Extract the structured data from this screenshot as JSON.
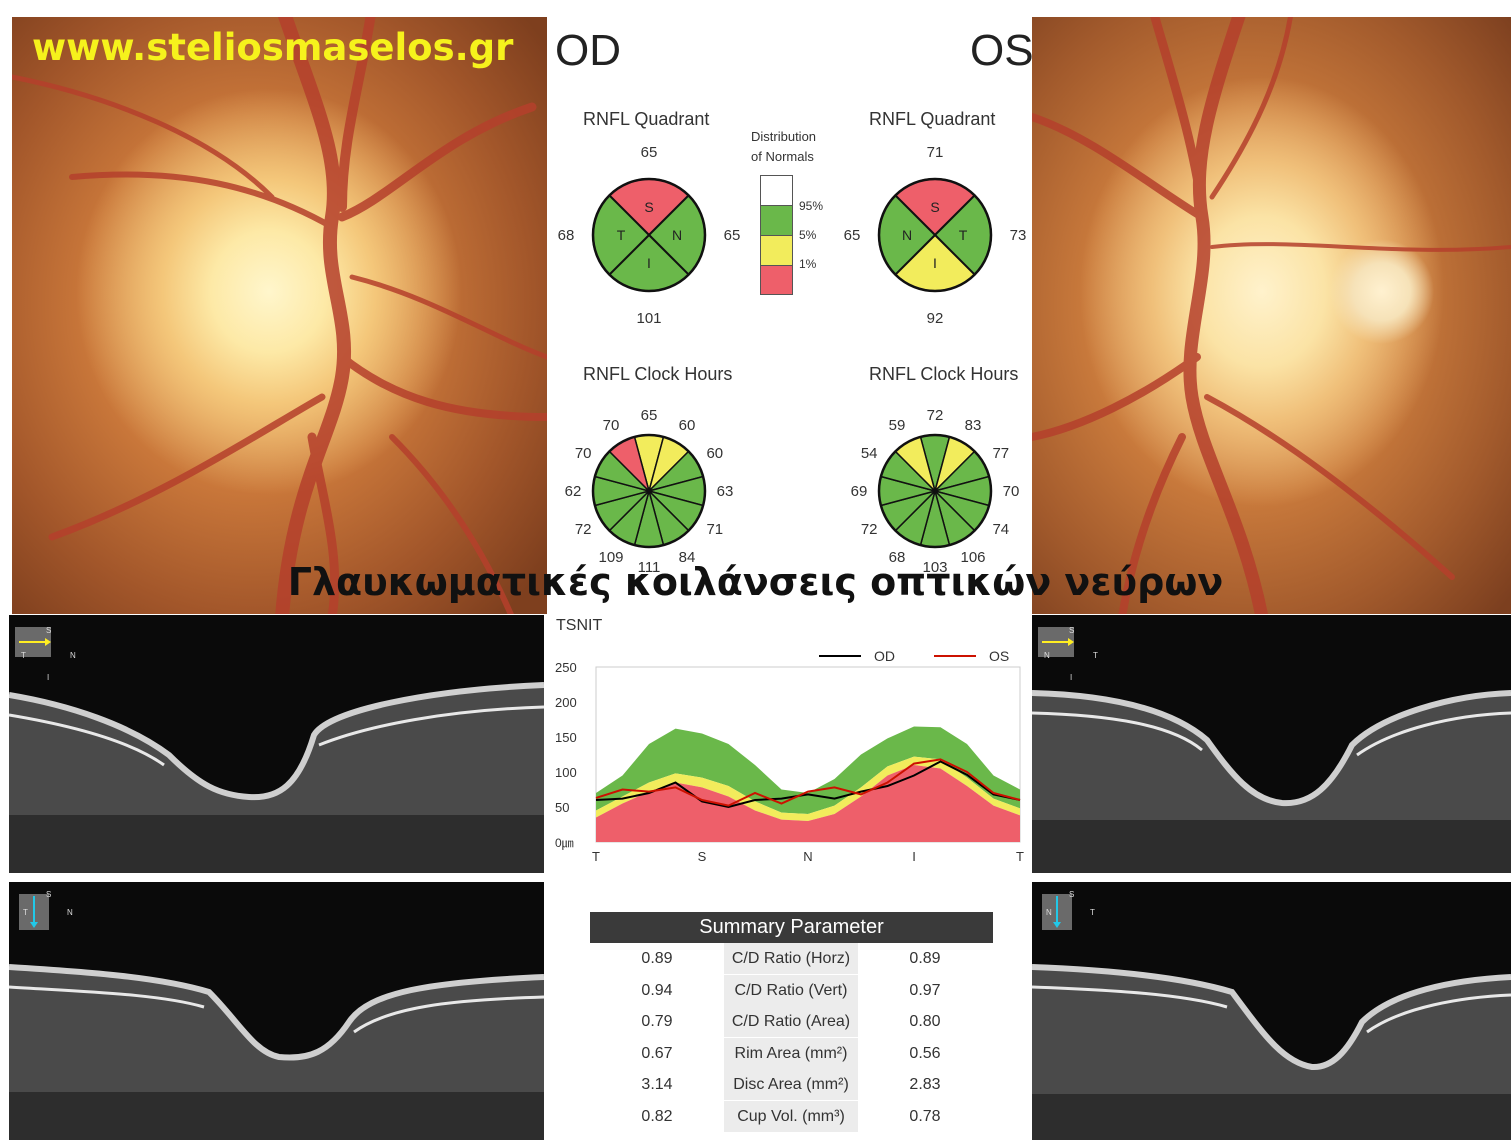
{
  "watermark": "www.steliosmaselos.gr",
  "caption": "Γλαυκωματικές κοιλάνσεις οπτικών νεύρων",
  "od_label": "OD",
  "os_label": "OS",
  "quadrant_title": "RNFL Quadrant",
  "clock_title": "RNFL Clock Hours",
  "distribution": {
    "title_line1": "Distribution",
    "title_line2": "of Normals",
    "levels": [
      "95%",
      "5%",
      "1%"
    ]
  },
  "colors": {
    "normal_green": "#6ab84a",
    "borderline_yellow": "#f2ec5c",
    "abnormal_red": "#ee5f6a",
    "white": "#ffffff",
    "od_line": "#000000",
    "os_line": "#cc1100"
  },
  "od_quadrant": {
    "S": {
      "label": "S",
      "value": "65",
      "status": "red"
    },
    "T": {
      "label": "T",
      "value": "68",
      "status": "green"
    },
    "N": {
      "label": "N",
      "value": "65",
      "status": "green"
    },
    "I": {
      "label": "I",
      "value": "101",
      "status": "green"
    }
  },
  "os_quadrant": {
    "S": {
      "label": "S",
      "value": "71",
      "status": "red"
    },
    "N": {
      "label": "N",
      "value": "65",
      "status": "green"
    },
    "T": {
      "label": "T",
      "value": "73",
      "status": "green"
    },
    "I": {
      "label": "I",
      "value": "92",
      "status": "yellow"
    }
  },
  "od_clock": [
    {
      "value": "65",
      "status": "yellow"
    },
    {
      "value": "60",
      "status": "yellow"
    },
    {
      "value": "60",
      "status": "green"
    },
    {
      "value": "63",
      "status": "green"
    },
    {
      "value": "71",
      "status": "green"
    },
    {
      "value": "84",
      "status": "green"
    },
    {
      "value": "111",
      "status": "green"
    },
    {
      "value": "109",
      "status": "green"
    },
    {
      "value": "72",
      "status": "green"
    },
    {
      "value": "62",
      "status": "green"
    },
    {
      "value": "70",
      "status": "green"
    },
    {
      "value": "70",
      "status": "red"
    }
  ],
  "os_clock": [
    {
      "value": "72",
      "status": "green"
    },
    {
      "value": "83",
      "status": "yellow"
    },
    {
      "value": "77",
      "status": "green"
    },
    {
      "value": "70",
      "status": "green"
    },
    {
      "value": "74",
      "status": "green"
    },
    {
      "value": "106",
      "status": "green"
    },
    {
      "value": "103",
      "status": "green"
    },
    {
      "value": "68",
      "status": "green"
    },
    {
      "value": "72",
      "status": "green"
    },
    {
      "value": "69",
      "status": "green"
    },
    {
      "value": "54",
      "status": "green"
    },
    {
      "value": "59",
      "status": "yellow"
    }
  ],
  "chart_data": {
    "type": "line",
    "title": "TSNIT",
    "ylabel": "",
    "unit_label": "0㎛",
    "y_ticks": [
      "250",
      "200",
      "150",
      "100",
      "50"
    ],
    "x_ticks": [
      "T",
      "S",
      "N",
      "I",
      "T"
    ],
    "ylim": [
      0,
      250
    ],
    "x": [
      0,
      16,
      32,
      48,
      64,
      80,
      96,
      112,
      128,
      144,
      160,
      176,
      192,
      208,
      224,
      240,
      256
    ],
    "normal_bands": {
      "p95_upper": [
        70,
        95,
        140,
        162,
        155,
        140,
        110,
        75,
        70,
        90,
        125,
        148,
        165,
        164,
        140,
        95,
        75
      ],
      "p5": [
        45,
        65,
        85,
        98,
        92,
        80,
        58,
        42,
        40,
        52,
        78,
        108,
        122,
        118,
        92,
        62,
        48
      ],
      "p1": [
        35,
        55,
        72,
        85,
        78,
        65,
        45,
        32,
        30,
        40,
        65,
        95,
        110,
        105,
        80,
        52,
        38
      ]
    },
    "series": [
      {
        "name": "OD",
        "values": [
          60,
          62,
          70,
          85,
          58,
          50,
          60,
          62,
          68,
          62,
          72,
          80,
          95,
          115,
          96,
          68,
          60
        ]
      },
      {
        "name": "OS",
        "values": [
          63,
          75,
          72,
          78,
          60,
          52,
          70,
          55,
          72,
          78,
          68,
          85,
          112,
          118,
          100,
          70,
          60
        ]
      }
    ],
    "legend": "top-right"
  },
  "summary": {
    "title": "Summary Parameter",
    "rows": [
      {
        "od": "0.89",
        "label": "C/D Ratio (Horz)",
        "os": "0.89"
      },
      {
        "od": "0.94",
        "label": "C/D Ratio (Vert)",
        "os": "0.97"
      },
      {
        "od": "0.79",
        "label": "C/D Ratio (Area)",
        "os": "0.80"
      },
      {
        "od": "0.67",
        "label": "Rim Area (mm²)",
        "os": "0.56"
      },
      {
        "od": "3.14",
        "label": "Disc Area (mm²)",
        "os": "2.83"
      },
      {
        "od": "0.82",
        "label": "Cup Vol. (mm³)",
        "os": "0.78"
      }
    ]
  },
  "oct_insets": {
    "od_horizontal": {
      "top": "S",
      "left": "T",
      "right": "N",
      "bottom": "I"
    },
    "od_vertical": {
      "top": "S",
      "left": "T",
      "right": "N"
    },
    "os_horizontal": {
      "top": "S",
      "left": "N",
      "right": "T",
      "bottom": "I"
    },
    "os_vertical": {
      "top": "S",
      "left": "N",
      "right": "T"
    }
  }
}
